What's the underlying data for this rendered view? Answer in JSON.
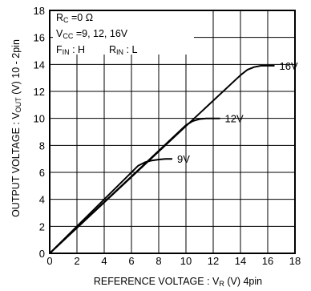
{
  "chart_data": {
    "type": "line",
    "xlabel": "REFERENCE  VOLTAGE : V",
    "xlabel_sub": "R",
    "xlabel_tail": "  (V)  4pin",
    "ylabel": "OUTPUT  VOLTAGE : V",
    "ylabel_sub": "OUT",
    "ylabel_tail": "   (V)  10 - 2pin",
    "xlim": [
      0,
      18
    ],
    "ylim": [
      0,
      18
    ],
    "x_ticks": [
      "0",
      "2",
      "4",
      "6",
      "8",
      "10",
      "12",
      "14",
      "16",
      "18"
    ],
    "y_ticks": [
      "0",
      "2",
      "4",
      "6",
      "8",
      "10",
      "12",
      "14",
      "16",
      "18"
    ],
    "grid": true,
    "annotations": {
      "line1_main": "R",
      "line1_sub": "C",
      "line1_tail": " =0 Ω",
      "line2_main": "V",
      "line2_sub": "CC",
      "line2_tail": " =9,  12,  16V",
      "line3_a_main": "F",
      "line3_a_sub": "IN",
      "line3_a_tail": " : H",
      "line3_b_main": "R",
      "line3_b_sub": "IN",
      "line3_b_tail": " : L"
    },
    "series": [
      {
        "name": "9V",
        "x": [
          0,
          6.5,
          7,
          7.5,
          8,
          8.5,
          9
        ],
        "y": [
          0,
          6.5,
          6.75,
          6.88,
          6.95,
          7.0,
          7.0
        ]
      },
      {
        "name": "12V",
        "x": [
          0,
          10,
          10.5,
          11,
          11.5,
          12,
          12.5
        ],
        "y": [
          0,
          9.5,
          9.8,
          9.95,
          10.0,
          10.0,
          10.0
        ]
      },
      {
        "name": "16V",
        "x": [
          0,
          14,
          14.5,
          15,
          15.5,
          16,
          16.5
        ],
        "y": [
          0,
          13.2,
          13.6,
          13.8,
          13.9,
          13.9,
          13.9
        ]
      }
    ]
  }
}
